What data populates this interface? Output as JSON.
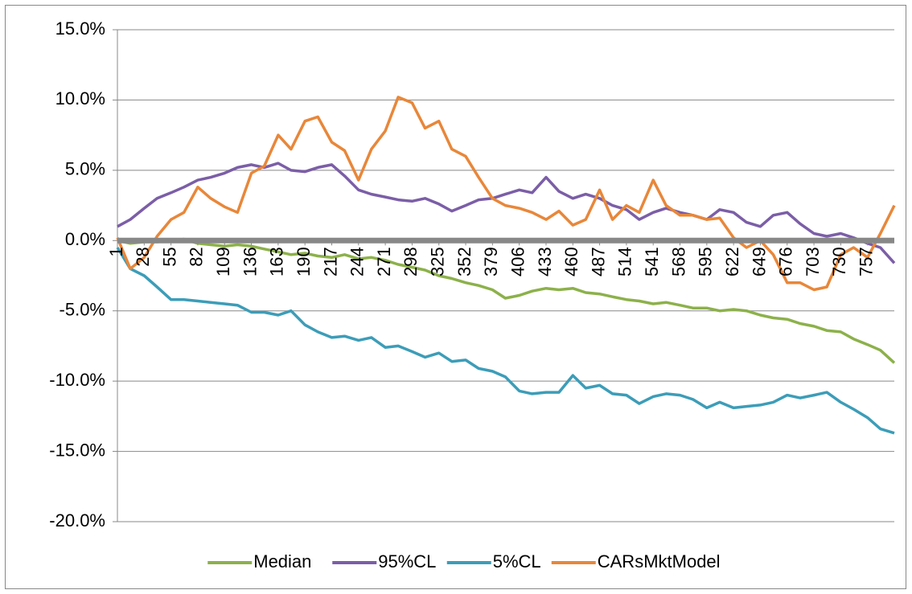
{
  "chart_data": {
    "type": "line",
    "x": [
      1,
      14,
      28,
      41,
      55,
      68,
      82,
      95,
      109,
      122,
      136,
      149,
      163,
      176,
      190,
      203,
      217,
      230,
      244,
      257,
      271,
      284,
      298,
      311,
      325,
      338,
      352,
      365,
      379,
      392,
      406,
      419,
      433,
      446,
      460,
      473,
      487,
      500,
      514,
      527,
      541,
      554,
      568,
      581,
      595,
      608,
      622,
      635,
      649,
      662,
      676,
      689,
      703,
      716,
      730,
      743,
      757,
      770,
      784
    ],
    "xlim": [
      1,
      784
    ],
    "xticks": [
      1,
      28,
      55,
      82,
      109,
      136,
      163,
      190,
      217,
      244,
      271,
      298,
      325,
      352,
      379,
      406,
      433,
      460,
      487,
      514,
      541,
      568,
      595,
      622,
      649,
      676,
      703,
      730,
      757
    ],
    "ylim": [
      -20,
      15
    ],
    "yticks": [
      {
        "value": -20,
        "label": "-20.0%"
      },
      {
        "value": -15,
        "label": "-15.0%"
      },
      {
        "value": -10,
        "label": "-10.0%"
      },
      {
        "value": -5,
        "label": "-5.0%"
      },
      {
        "value": 0,
        "label": "0.0%"
      },
      {
        "value": 5,
        "label": "5.0%"
      },
      {
        "value": 10,
        "label": "10.0%"
      },
      {
        "value": 15,
        "label": "15.0%"
      }
    ],
    "grid": true,
    "legend": "bottom",
    "series": [
      {
        "name": "Median",
        "color": "#8cb14a",
        "values": [
          0,
          -0.2,
          -0.1,
          -0.1,
          0,
          0.1,
          -0.2,
          -0.3,
          -0.4,
          -0.3,
          -0.4,
          -0.6,
          -0.8,
          -1.0,
          -0.9,
          -1.1,
          -1.2,
          -1.0,
          -1.3,
          -1.2,
          -1.4,
          -1.7,
          -1.9,
          -2.1,
          -2.5,
          -2.7,
          -3.0,
          -3.2,
          -3.5,
          -4.1,
          -3.9,
          -3.6,
          -3.4,
          -3.5,
          -3.4,
          -3.7,
          -3.8,
          -4.0,
          -4.2,
          -4.3,
          -4.5,
          -4.4,
          -4.6,
          -4.8,
          -4.8,
          -5.0,
          -4.9,
          -5.0,
          -5.3,
          -5.5,
          -5.6,
          -5.9,
          -6.1,
          -6.4,
          -6.5,
          -7.0,
          -7.4,
          -7.8,
          -8.7
        ]
      },
      {
        "name": "95%CL",
        "color": "#7b5ea7",
        "values": [
          1.0,
          1.5,
          2.3,
          3.0,
          3.4,
          3.8,
          4.3,
          4.5,
          4.8,
          5.2,
          5.4,
          5.2,
          5.5,
          5.0,
          4.9,
          5.2,
          5.4,
          4.6,
          3.6,
          3.3,
          3.1,
          2.9,
          2.8,
          3.0,
          2.6,
          2.1,
          2.5,
          2.9,
          3.0,
          3.3,
          3.6,
          3.4,
          4.5,
          3.5,
          3.0,
          3.3,
          3.0,
          2.5,
          2.2,
          1.5,
          2.0,
          2.3,
          2.0,
          1.8,
          1.5,
          2.2,
          2.0,
          1.3,
          1.0,
          1.8,
          2.0,
          1.2,
          0.5,
          0.3,
          0.5,
          0.2,
          -0.2,
          -0.5,
          -1.6
        ]
      },
      {
        "name": "5%CL",
        "color": "#3c9db8",
        "values": [
          -0.5,
          -2.0,
          -2.5,
          -3.3,
          -4.2,
          -4.2,
          -4.3,
          -4.4,
          -4.5,
          -4.6,
          -5.1,
          -5.1,
          -5.3,
          -5.0,
          -6.0,
          -6.5,
          -6.9,
          -6.8,
          -7.1,
          -6.9,
          -7.6,
          -7.5,
          -7.9,
          -8.3,
          -8.0,
          -8.6,
          -8.5,
          -9.1,
          -9.3,
          -9.7,
          -10.7,
          -10.9,
          -10.8,
          -10.8,
          -9.6,
          -10.5,
          -10.3,
          -10.9,
          -11.0,
          -11.6,
          -11.1,
          -10.9,
          -11.0,
          -11.3,
          -11.9,
          -11.5,
          -11.9,
          -11.8,
          -11.7,
          -11.5,
          -11.0,
          -11.2,
          -11.0,
          -10.8,
          -11.5,
          -12.0,
          -12.6,
          -13.4,
          -13.7
        ]
      },
      {
        "name": "CARsMktModel",
        "color": "#e8873a",
        "values": [
          0.2,
          -2.0,
          -1.2,
          0.3,
          1.5,
          2.0,
          3.8,
          3.0,
          2.4,
          2.0,
          4.8,
          5.3,
          7.5,
          6.5,
          8.5,
          8.8,
          7.0,
          6.4,
          4.3,
          6.5,
          7.8,
          10.2,
          9.8,
          8.0,
          8.5,
          6.5,
          6.0,
          4.5,
          3.0,
          2.5,
          2.3,
          2.0,
          1.5,
          2.1,
          1.1,
          1.5,
          3.6,
          1.5,
          2.5,
          2.0,
          4.3,
          2.5,
          1.8,
          1.8,
          1.5,
          1.6,
          0.2,
          -0.5,
          0.0,
          -1.0,
          -3.0,
          -3.0,
          -3.5,
          -3.3,
          -1.0,
          -0.5,
          -1.2,
          0.5,
          2.5
        ]
      }
    ]
  }
}
